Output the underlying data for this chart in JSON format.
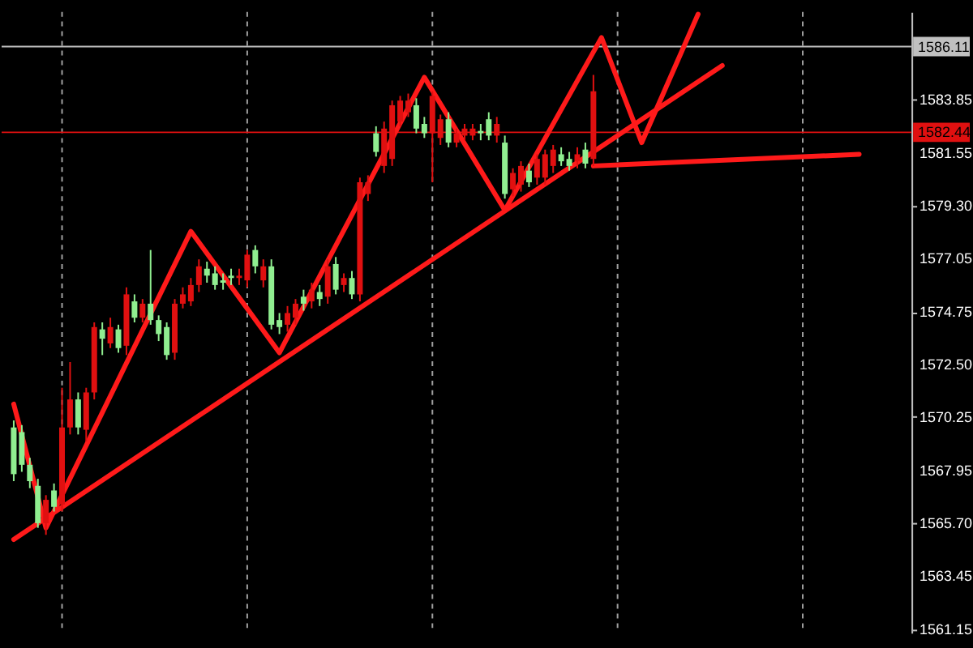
{
  "chart_data": {
    "type": "candlestick",
    "categories": [
      null,
      null,
      null,
      null,
      null,
      null,
      null,
      null,
      null,
      null,
      null,
      null,
      null,
      null,
      null,
      null,
      null,
      null,
      null,
      null,
      null,
      null,
      null,
      null,
      null,
      null,
      null,
      null,
      null,
      null,
      null,
      null,
      null,
      null,
      null,
      null,
      null,
      null,
      null,
      null,
      null,
      null,
      null,
      null,
      null,
      null,
      null,
      null,
      null,
      null,
      null,
      null,
      null,
      null,
      null,
      null,
      null,
      null,
      null,
      null,
      null,
      null,
      null,
      null,
      null,
      null,
      null,
      null,
      null,
      null,
      null,
      null,
      null,
      null,
      null,
      null,
      null,
      null,
      null,
      null,
      null,
      null,
      null,
      null,
      null,
      null,
      null,
      null,
      null,
      null,
      null,
      null,
      null,
      null,
      null,
      null,
      null,
      null,
      null,
      null,
      null,
      null,
      null,
      null,
      null,
      null,
      null,
      null,
      null,
      null,
      null
    ],
    "ohlc": [
      [
        1569.8,
        1570.1,
        1567.5,
        1567.8
      ],
      [
        1569.6,
        1569.9,
        1567.9,
        1568.2
      ],
      [
        1568.2,
        1568.5,
        1567.2,
        1567.5
      ],
      [
        1567.3,
        1567.6,
        1565.5,
        1565.7
      ],
      [
        1565.7,
        1566.9,
        1565.2,
        1566.7
      ],
      [
        1567.1,
        1567.4,
        1566.2,
        1566.4
      ],
      [
        1566.5,
        1571.5,
        1566.2,
        1569.8
      ],
      [
        1569.8,
        1572.6,
        1569.5,
        1571.0
      ],
      [
        1571.0,
        1571.3,
        1569.5,
        1569.8
      ],
      [
        1569.7,
        1571.5,
        1569.2,
        1571.3
      ],
      [
        1571.3,
        1574.3,
        1571.0,
        1574.1
      ],
      [
        1574.0,
        1574.3,
        1572.9,
        1573.6
      ],
      [
        1573.4,
        1574.5,
        1573.2,
        1574.1
      ],
      [
        1574.0,
        1574.2,
        1573.0,
        1573.2
      ],
      [
        1573.3,
        1575.8,
        1572.9,
        1575.5
      ],
      [
        1575.2,
        1575.5,
        1574.3,
        1574.5
      ],
      [
        1574.5,
        1575.3,
        1574.3,
        1575.1
      ],
      [
        1575.1,
        1577.4,
        1574.2,
        1574.4
      ],
      [
        1574.4,
        1574.6,
        1573.5,
        1573.8
      ],
      [
        1574.1,
        1574.3,
        1572.7,
        1572.9
      ],
      [
        1573.0,
        1575.3,
        1572.7,
        1575.1
      ],
      [
        1575.1,
        1575.8,
        1574.9,
        1575.5
      ],
      [
        1575.2,
        1576.2,
        1575.0,
        1575.9
      ],
      [
        1575.9,
        1577.0,
        1575.6,
        1576.7
      ],
      [
        1576.6,
        1576.9,
        1576.0,
        1576.3
      ],
      [
        1576.4,
        1576.7,
        1575.7,
        1575.9
      ],
      [
        1576.1,
        1576.4,
        1575.7,
        1576.0
      ],
      [
        1576.3,
        1576.6,
        1575.9,
        1576.2
      ],
      [
        1576.2,
        1576.6,
        1575.9,
        1576.3
      ],
      [
        1576.1,
        1577.4,
        1575.8,
        1577.2
      ],
      [
        1577.4,
        1577.6,
        1576.4,
        1576.7
      ],
      [
        1576.1,
        1577.0,
        1575.8,
        1576.7
      ],
      [
        1576.7,
        1577.0,
        1574.0,
        1574.2
      ],
      [
        1574.4,
        1574.7,
        1573.8,
        1574.1
      ],
      [
        1574.2,
        1575.0,
        1573.9,
        1574.7
      ],
      [
        1574.5,
        1575.3,
        1574.2,
        1575.1
      ],
      [
        1575.4,
        1575.7,
        1574.8,
        1575.1
      ],
      [
        1575.2,
        1576.0,
        1574.9,
        1575.7
      ],
      [
        1575.6,
        1575.9,
        1575.0,
        1575.3
      ],
      [
        1575.4,
        1577.0,
        1575.1,
        1576.7
      ],
      [
        1576.8,
        1577.1,
        1575.5,
        1575.7
      ],
      [
        1575.9,
        1576.4,
        1575.6,
        1576.2
      ],
      [
        1576.2,
        1576.5,
        1575.3,
        1575.5
      ],
      [
        1575.5,
        1580.5,
        1575.2,
        1580.3
      ],
      [
        1579.8,
        1580.6,
        1579.5,
        1580.3
      ],
      [
        1582.4,
        1582.7,
        1581.4,
        1581.6
      ],
      [
        1581.0,
        1582.9,
        1580.7,
        1582.6
      ],
      [
        1581.3,
        1583.8,
        1581.0,
        1583.6
      ],
      [
        1582.9,
        1584.0,
        1582.7,
        1583.8
      ],
      [
        1583.3,
        1584.1,
        1583.1,
        1583.8
      ],
      [
        1583.6,
        1583.9,
        1582.4,
        1582.6
      ],
      [
        1582.8,
        1583.1,
        1582.2,
        1582.4
      ],
      [
        1582.4,
        1584.2,
        1580.3,
        1584.0
      ],
      [
        1582.2,
        1583.2,
        1581.9,
        1583.0
      ],
      [
        1583.0,
        1583.3,
        1581.8,
        1582.0
      ],
      [
        1582.0,
        1582.6,
        1581.8,
        1582.4
      ],
      [
        1582.3,
        1582.8,
        1582.1,
        1582.6
      ],
      [
        1582.3,
        1582.8,
        1582.1,
        1582.6
      ],
      [
        1582.5,
        1582.8,
        1582.1,
        1582.4
      ],
      [
        1583.0,
        1583.3,
        1582.1,
        1582.3
      ],
      [
        1582.3,
        1583.1,
        1582.0,
        1582.8
      ],
      [
        1582.0,
        1582.3,
        1579.6,
        1579.8
      ],
      [
        1580.0,
        1580.9,
        1579.7,
        1580.7
      ],
      [
        1580.2,
        1581.2,
        1579.9,
        1581.0
      ],
      [
        1580.8,
        1581.1,
        1580.1,
        1580.3
      ],
      [
        1580.5,
        1581.5,
        1580.2,
        1581.3
      ],
      [
        1580.5,
        1581.7,
        1580.2,
        1581.5
      ],
      [
        1581.0,
        1581.9,
        1580.7,
        1581.7
      ],
      [
        1581.5,
        1581.8,
        1581.0,
        1581.2
      ],
      [
        1581.3,
        1581.6,
        1580.8,
        1581.0
      ],
      [
        1581.2,
        1581.8,
        1580.9,
        1581.5
      ],
      [
        1581.7,
        1582.0,
        1580.9,
        1581.1
      ],
      [
        1581.3,
        1584.9,
        1581.0,
        1584.2
      ],
      null,
      null,
      null,
      null,
      null,
      null,
      null,
      null,
      null,
      null,
      null,
      null,
      null,
      null,
      null,
      null,
      null,
      null,
      null,
      null,
      null,
      null,
      null,
      null,
      null,
      null,
      null,
      null,
      null,
      null,
      null,
      null,
      null,
      null,
      null,
      null,
      null,
      null
    ],
    "colors": [
      "#90ee90",
      "#90ee90",
      "#90ee90",
      "#90ee90",
      "#e01010",
      "#90ee90",
      "#e01010",
      "#e01010",
      "#90ee90",
      "#e01010",
      "#e01010",
      "#90ee90",
      "#e01010",
      "#90ee90",
      "#e01010",
      "#90ee90",
      "#e01010",
      "#90ee90",
      "#90ee90",
      "#90ee90",
      "#e01010",
      "#e01010",
      "#e01010",
      "#e01010",
      "#90ee90",
      "#90ee90",
      "#90ee90",
      "#90ee90",
      "#e01010",
      "#e01010",
      "#90ee90",
      "#e01010",
      "#90ee90",
      "#90ee90",
      "#e01010",
      "#e01010",
      "#90ee90",
      "#e01010",
      "#90ee90",
      "#e01010",
      "#90ee90",
      "#e01010",
      "#90ee90",
      "#e01010",
      "#e01010",
      "#90ee90",
      "#e01010",
      "#e01010",
      "#e01010",
      "#e01010",
      "#90ee90",
      "#90ee90",
      "#e01010",
      "#e01010",
      "#90ee90",
      "#e01010",
      "#e01010",
      "#e01010",
      "#90ee90",
      "#90ee90",
      "#e01010",
      "#90ee90",
      "#e01010",
      "#e01010",
      "#90ee90",
      "#e01010",
      "#e01010",
      "#e01010",
      "#90ee90",
      "#90ee90",
      "#e01010",
      "#90ee90",
      "#e01010",
      null,
      null,
      null,
      null,
      null,
      null,
      null,
      null,
      null,
      null,
      null,
      null,
      null,
      null,
      null,
      null,
      null,
      null,
      null,
      null,
      null,
      null,
      null,
      null,
      null,
      null,
      null,
      null,
      null,
      null,
      null,
      null,
      null,
      null,
      null,
      null,
      null,
      null
    ],
    "series": [
      {
        "type": "line",
        "color": "#ff1a1a",
        "values": [
          1565.0,
          null,
          null,
          null,
          null,
          null,
          null,
          null,
          null,
          null,
          null,
          null,
          null,
          null,
          null,
          null,
          null,
          null,
          null,
          null,
          null,
          null,
          null,
          null,
          null,
          null,
          null,
          null,
          null,
          null,
          null,
          null,
          null,
          null,
          null,
          null,
          null,
          null,
          null,
          null,
          null,
          null,
          null,
          null,
          null,
          null,
          null,
          null,
          null,
          null,
          null,
          null,
          null,
          null,
          null,
          null,
          null,
          null,
          null,
          null,
          null,
          null,
          null,
          null,
          null,
          null,
          null,
          null,
          null,
          null,
          null,
          null,
          null,
          null,
          null,
          null,
          null,
          null,
          null,
          null,
          null,
          null,
          null,
          null,
          null,
          null,
          null,
          null,
          1585.3,
          null,
          null,
          null,
          null,
          null,
          null,
          null,
          null,
          null,
          null,
          null,
          null,
          null,
          null,
          null,
          null,
          null,
          null,
          null,
          null,
          null,
          null
        ]
      },
      {
        "type": "line",
        "color": "#ff1a1a",
        "values": [
          1570.8,
          null,
          null,
          null,
          1565.5,
          null,
          null,
          null,
          null,
          null,
          null,
          null,
          null,
          null,
          null,
          null,
          null,
          null,
          null,
          null,
          null,
          null,
          1578.2,
          null,
          null,
          null,
          null,
          null,
          null,
          null,
          null,
          null,
          null,
          1573.0,
          null,
          null,
          null,
          null,
          null,
          null,
          null,
          null,
          null,
          null,
          null,
          null,
          null,
          null,
          null,
          null,
          null,
          1584.8,
          null,
          null,
          null,
          null,
          null,
          null,
          null,
          null,
          null,
          1579.1,
          null,
          null,
          null,
          null,
          null,
          null,
          null,
          null,
          null,
          null,
          null,
          1586.5,
          null,
          null,
          null,
          null,
          1582.0,
          null,
          null,
          null,
          null,
          null,
          null,
          1587.5,
          null,
          null,
          null,
          null,
          null,
          null,
          null,
          null,
          null,
          null,
          null,
          null,
          null,
          null,
          null,
          null,
          null,
          null,
          null,
          null,
          null,
          null,
          null,
          null,
          null
        ]
      },
      {
        "type": "line",
        "color": "#ff1a1a",
        "values": [
          null,
          null,
          null,
          null,
          null,
          null,
          null,
          null,
          null,
          null,
          null,
          null,
          null,
          null,
          null,
          null,
          null,
          null,
          null,
          null,
          null,
          null,
          null,
          null,
          null,
          null,
          null,
          null,
          null,
          null,
          null,
          null,
          null,
          null,
          null,
          null,
          null,
          null,
          null,
          null,
          null,
          null,
          null,
          null,
          null,
          null,
          null,
          null,
          null,
          null,
          null,
          null,
          null,
          null,
          null,
          null,
          null,
          null,
          null,
          null,
          null,
          null,
          null,
          null,
          null,
          null,
          null,
          null,
          null,
          null,
          null,
          null,
          1581.0,
          null,
          null,
          null,
          null,
          null,
          null,
          null,
          null,
          null,
          null,
          null,
          null,
          null,
          null,
          null,
          null,
          null,
          null,
          null,
          null,
          null,
          null,
          null,
          null,
          null,
          null,
          null,
          null,
          null,
          null,
          null,
          null,
          1581.5,
          null,
          null,
          null,
          null,
          null
        ]
      }
    ],
    "ylim": [
      1561.0,
      1587.6
    ],
    "yticks": [
      1561.15,
      1563.45,
      {
        "value": 1565.7,
        "label": "1565.70"
      },
      1567.95,
      1570.25,
      {
        "value": 1572.5,
        "label": "1572.50"
      },
      1574.75,
      1577.05,
      {
        "value": 1579.3,
        "label": "1579.30"
      },
      1581.55,
      1583.85
    ],
    "ref_lines": [
      {
        "axis": "y",
        "value": 1586.11,
        "label": "1586.11",
        "color": "#c0c0c0"
      },
      {
        "axis": "y",
        "value": 1582.44,
        "label": "1582.44",
        "color": "#e01010"
      }
    ],
    "grid": "x",
    "tick_labels": "y"
  }
}
